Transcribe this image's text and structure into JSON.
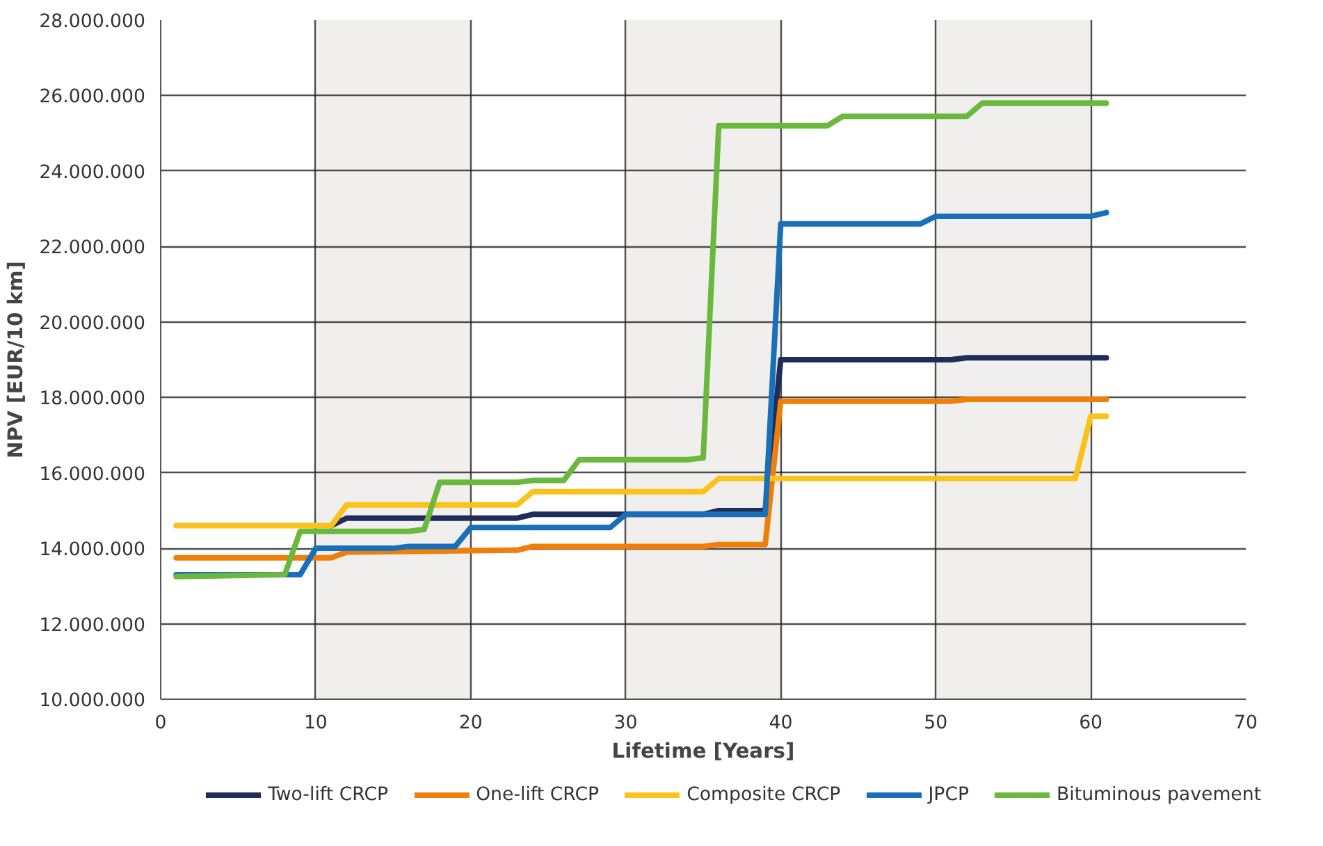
{
  "chart_data": {
    "type": "line",
    "xlabel": "Lifetime [Years]",
    "ylabel": "NPV [EUR/10 km]",
    "xlim": [
      0,
      70
    ],
    "xticks": [
      0,
      10,
      20,
      30,
      40,
      50,
      60,
      70
    ],
    "ylim": [
      10000000,
      28000000
    ],
    "yticks": [
      {
        "value": 10000000,
        "label": "10.000.000"
      },
      {
        "value": 12000000,
        "label": "12.000.000"
      },
      {
        "value": 14000000,
        "label": "14.000.000"
      },
      {
        "value": 16000000,
        "label": "16.000.000"
      },
      {
        "value": 18000000,
        "label": "18.000.000"
      },
      {
        "value": 20000000,
        "label": "20.000.000"
      },
      {
        "value": 22000000,
        "label": "22.000.000"
      },
      {
        "value": 24000000,
        "label": "24.000.000"
      },
      {
        "value": 26000000,
        "label": "26.000.000"
      },
      {
        "value": 28000000,
        "label": "28.000.000"
      }
    ],
    "grid": true,
    "legend": "bottom",
    "marker": "none",
    "line_style": "solid",
    "series": [
      {
        "name": "Two-lift CRCP",
        "color": "#1f2d5a",
        "x": [
          11,
          12,
          23,
          24,
          35,
          36,
          39,
          40,
          51,
          52,
          61
        ],
        "values": [
          14600000,
          14800000,
          14800000,
          14900000,
          14900000,
          15000000,
          15000000,
          19000000,
          19000000,
          19050000,
          19050000
        ]
      },
      {
        "name": "One-lift CRCP",
        "color": "#f07f09",
        "x": [
          1,
          11,
          12,
          23,
          24,
          35,
          36,
          39,
          40,
          51,
          52,
          61
        ],
        "values": [
          13750000,
          13750000,
          13900000,
          13950000,
          14050000,
          14050000,
          14100000,
          14100000,
          17900000,
          17900000,
          17950000,
          17950000
        ]
      },
      {
        "name": "Composite CRCP",
        "color": "#fbc21b",
        "x": [
          1,
          11,
          12,
          23,
          24,
          35,
          36,
          59,
          60,
          61
        ],
        "values": [
          14600000,
          14600000,
          15150000,
          15150000,
          15500000,
          15500000,
          15850000,
          15850000,
          17500000,
          17500000
        ]
      },
      {
        "name": "JPCP",
        "color": "#1a70b8",
        "x": [
          1,
          9,
          10,
          15,
          16,
          19,
          20,
          29,
          30,
          39,
          40,
          49,
          50,
          60,
          61
        ],
        "values": [
          13300000,
          13300000,
          14000000,
          14000000,
          14050000,
          14050000,
          14550000,
          14550000,
          14900000,
          14900000,
          22600000,
          22600000,
          22800000,
          22800000,
          22900000
        ]
      },
      {
        "name": "Bituminous pavement",
        "color": "#6bb83f",
        "x": [
          1,
          8,
          9,
          16,
          17,
          18,
          23,
          24,
          26,
          27,
          34,
          35,
          36,
          43,
          44,
          52,
          53,
          61
        ],
        "values": [
          13250000,
          13300000,
          14450000,
          14450000,
          14500000,
          15750000,
          15750000,
          15800000,
          15800000,
          16350000,
          16350000,
          16400000,
          25200000,
          25200000,
          25450000,
          25450000,
          25800000,
          25800000
        ]
      }
    ]
  }
}
